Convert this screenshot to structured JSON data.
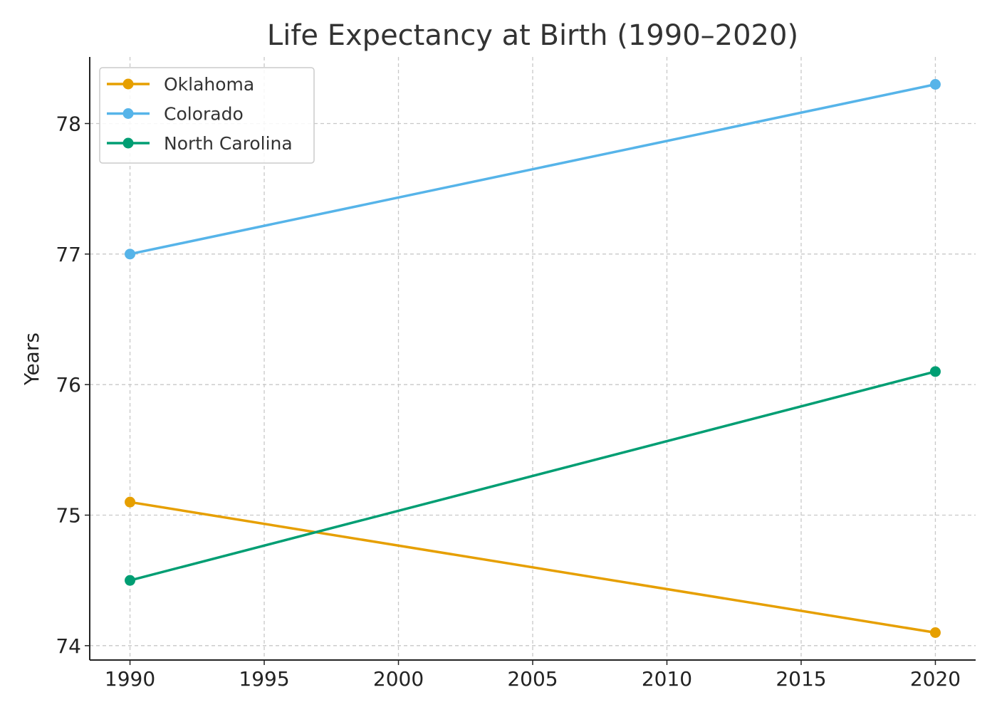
{
  "chart_data": {
    "type": "line",
    "title": "Life Expectancy at Birth (1990–2020)",
    "xlabel": "",
    "ylabel": "Years",
    "x": [
      1990,
      2020
    ],
    "xlim": [
      1988.5,
      2021.5
    ],
    "ylim": [
      73.89,
      78.51
    ],
    "xticks": [
      1990,
      1995,
      2000,
      2005,
      2010,
      2015,
      2020
    ],
    "yticks": [
      74,
      75,
      76,
      77,
      78
    ],
    "grid": true,
    "legend_position": "top-left",
    "series": [
      {
        "name": "Oklahoma",
        "values": [
          75.1,
          74.1
        ],
        "color": "#E69F00"
      },
      {
        "name": "Colorado",
        "values": [
          77.0,
          78.3
        ],
        "color": "#56B4E9"
      },
      {
        "name": "North Carolina",
        "values": [
          74.5,
          76.1
        ],
        "color": "#009E73"
      }
    ]
  }
}
